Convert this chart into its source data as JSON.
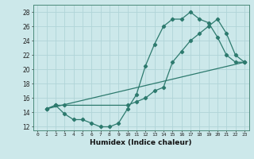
{
  "line1_x": [
    1,
    2,
    3,
    4,
    5,
    6,
    7,
    8,
    9,
    10,
    11,
    12,
    13,
    14,
    15,
    16,
    17,
    18,
    19,
    20,
    21,
    22,
    23
  ],
  "line1_y": [
    14.5,
    15,
    13.8,
    13,
    13,
    12.5,
    12,
    12,
    12.5,
    14.5,
    16.5,
    20.5,
    23.5,
    26,
    27,
    27,
    28,
    27,
    26.5,
    24.5,
    22,
    21,
    21
  ],
  "line2_x": [
    1,
    2,
    3,
    10,
    11,
    12,
    13,
    14,
    15,
    16,
    17,
    18,
    19,
    20,
    21,
    22,
    23
  ],
  "line2_y": [
    14.5,
    15,
    15,
    15,
    15.5,
    16,
    17,
    17.5,
    21,
    22.5,
    24,
    25,
    26,
    27,
    25,
    22,
    21
  ],
  "line3_x": [
    1,
    23
  ],
  "line3_y": [
    14.5,
    21
  ],
  "color": "#2d7a6e",
  "bg_color": "#cce8ea",
  "grid_color": "#b0d4d8",
  "xlabel": "Humidex (Indice chaleur)",
  "xlim": [
    -0.5,
    23.5
  ],
  "ylim": [
    11.5,
    29
  ],
  "xticks": [
    0,
    1,
    2,
    3,
    4,
    5,
    6,
    7,
    8,
    9,
    10,
    11,
    12,
    13,
    14,
    15,
    16,
    17,
    18,
    19,
    20,
    21,
    22,
    23
  ],
  "yticks": [
    12,
    14,
    16,
    18,
    20,
    22,
    24,
    26,
    28
  ],
  "marker": "D",
  "marker_size": 2.2,
  "linewidth": 0.9
}
